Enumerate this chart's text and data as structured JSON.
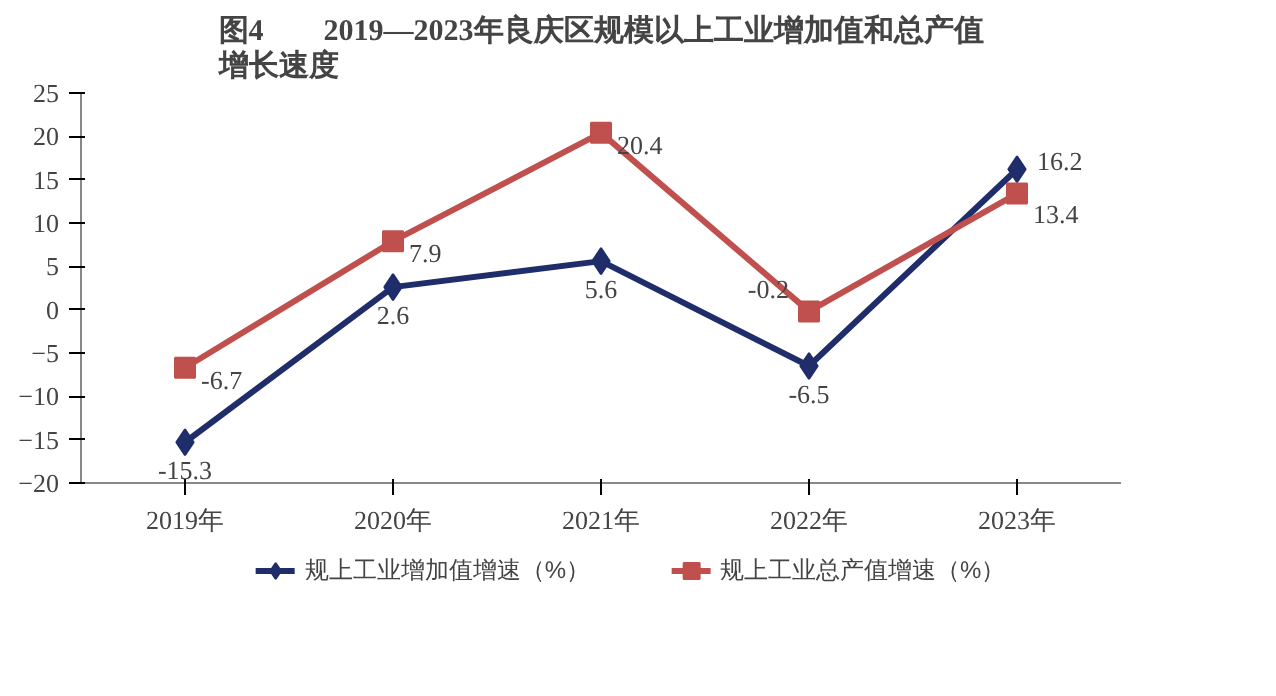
{
  "chart_data": {
    "type": "line",
    "title": "图4　　2019—2023年良庆区规模以上工业增加值和总产值增长速度",
    "categories": [
      "2019年",
      "2020年",
      "2021年",
      "2022年",
      "2023年"
    ],
    "series": [
      {
        "name": "规上工业增加值增速（%）",
        "color": "#1f2d6b",
        "marker": "diamond",
        "values": [
          -15.3,
          2.6,
          5.6,
          -6.5,
          16.2
        ]
      },
      {
        "name": "规上工业总产值增速（%）",
        "color": "#c0504d",
        "marker": "square",
        "values": [
          -6.7,
          7.9,
          20.4,
          -0.2,
          13.4
        ]
      }
    ],
    "ylim": [
      -20,
      25
    ],
    "yticks": [
      -20,
      -15,
      -10,
      -5,
      0,
      5,
      10,
      15,
      20,
      25
    ],
    "data_labels": true,
    "grid": false,
    "legend": "bottom"
  }
}
